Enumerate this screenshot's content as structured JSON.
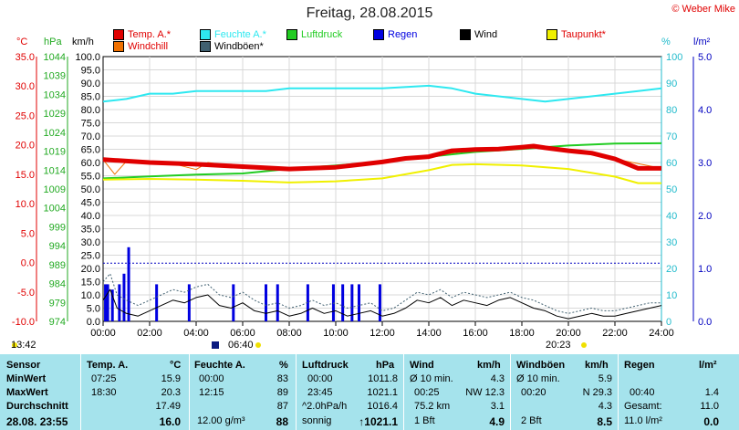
{
  "title": "Freitag, 28.08.2015",
  "credit": "© Weber Mike",
  "axis_units": {
    "temp": "°C",
    "pressure": "hPa",
    "speed": "km/h",
    "percent": "%",
    "rain": "l/m²"
  },
  "legend": [
    {
      "label": "Temp. A.*",
      "color": "#e00000"
    },
    {
      "label": "Feuchte A.*",
      "color": "#2ee8f0"
    },
    {
      "label": "Luftdruck",
      "color": "#22cc22"
    },
    {
      "label": "Regen",
      "color": "#0000e0"
    },
    {
      "label": "Wind",
      "color": "#000000"
    },
    {
      "label": "Taupunkt*",
      "color": "#f0f000"
    },
    {
      "label": "Windchill",
      "color": "#f07000"
    },
    {
      "label": "Windböen*",
      "color": "#406070"
    }
  ],
  "axes": {
    "temp_ticks": [
      "35.0",
      "30.0",
      "25.0",
      "20.0",
      "15.0",
      "10.0",
      "5.0",
      "0.0",
      "-5.0",
      "-10.0"
    ],
    "pressure_ticks": [
      "1044",
      "1039",
      "1034",
      "1029",
      "1024",
      "1019",
      "1014",
      "1009",
      "1004",
      "999",
      "994",
      "989",
      "984",
      "979",
      "974"
    ],
    "speed_ticks": [
      "100.0",
      "95.0",
      "90.0",
      "85.0",
      "80.0",
      "75.0",
      "70.0",
      "65.0",
      "60.0",
      "55.0",
      "50.0",
      "45.0",
      "40.0",
      "35.0",
      "30.0",
      "25.0",
      "20.0",
      "15.0",
      "10.0",
      "5.0",
      "0.0"
    ],
    "percent_ticks": [
      "100",
      "90",
      "80",
      "70",
      "60",
      "50",
      "40",
      "30",
      "20",
      "10",
      "0"
    ],
    "rain_ticks": [
      "5.0",
      "4.0",
      "3.0",
      "2.0",
      "1.0",
      "0.0"
    ],
    "x_ticks": [
      "00:00",
      "02:00",
      "04:00",
      "06:00",
      "08:00",
      "10:00",
      "12:00",
      "14:00",
      "16:00",
      "18:00",
      "20:00",
      "22:00",
      "24:00"
    ]
  },
  "sun_events": {
    "sunrise": "06:40",
    "sunset": "20:23",
    "left_time": "13:42"
  },
  "chart_data": {
    "type": "line",
    "x_unit": "hour",
    "temp_range": [
      -10,
      35
    ],
    "pressure_range": [
      974,
      1044
    ],
    "speed_range": [
      0,
      100
    ],
    "percent_range": [
      0,
      100
    ],
    "rain_range": [
      0,
      5
    ],
    "series": [
      {
        "name": "Temp. A.*",
        "axis": "temp",
        "x": [
          0,
          2,
          4,
          6,
          8,
          10,
          12,
          13,
          14,
          15,
          16,
          17,
          18,
          18.5,
          19,
          20,
          21,
          22,
          23,
          24
        ],
        "values": [
          17.5,
          17.0,
          16.7,
          16.3,
          15.9,
          16.2,
          17.1,
          17.7,
          18.0,
          19.0,
          19.2,
          19.3,
          19.6,
          19.8,
          19.5,
          19.0,
          18.6,
          17.6,
          16.0,
          16.0
        ]
      },
      {
        "name": "Feuchte A.*",
        "axis": "percent",
        "x": [
          0,
          1,
          2,
          3,
          4,
          6,
          7,
          8,
          10,
          12,
          14,
          15,
          16,
          18,
          19,
          20,
          22,
          23,
          24
        ],
        "values": [
          83,
          84,
          86,
          86,
          87,
          87,
          87,
          88,
          88,
          88,
          89,
          88,
          86,
          84,
          83,
          84,
          86,
          87,
          88
        ]
      },
      {
        "name": "Luftdruck",
        "axis": "pressure",
        "x": [
          0,
          2,
          4,
          6,
          8,
          10,
          12,
          14,
          16,
          18,
          20,
          22,
          24
        ],
        "values": [
          1011.8,
          1012.3,
          1012.8,
          1013.1,
          1014.3,
          1015.2,
          1016.2,
          1017.5,
          1018.8,
          1019.6,
          1020.5,
          1021.0,
          1021.1
        ]
      },
      {
        "name": "Taupunkt*",
        "axis": "temp",
        "x": [
          0,
          2,
          4,
          6,
          8,
          10,
          12,
          14,
          15,
          16,
          18,
          20,
          22,
          23,
          24
        ],
        "values": [
          14.1,
          14.2,
          14.1,
          13.9,
          13.6,
          13.8,
          14.3,
          15.7,
          16.6,
          16.7,
          16.5,
          15.9,
          14.6,
          13.5,
          13.5
        ]
      },
      {
        "name": "Windchill",
        "axis": "temp",
        "x": [
          0,
          0.5,
          1,
          2,
          3,
          4,
          4.5,
          5,
          6,
          8,
          10,
          12,
          14,
          16,
          18,
          20,
          22,
          24
        ],
        "values": [
          17.5,
          15.0,
          17.2,
          17.0,
          16.8,
          15.8,
          17.0,
          16.7,
          16.3,
          15.9,
          16.2,
          17.1,
          18.0,
          19.2,
          19.6,
          19.0,
          17.6,
          16.0
        ]
      },
      {
        "name": "Wind",
        "axis": "speed",
        "x": [
          0,
          0.3,
          0.6,
          1,
          1.5,
          2,
          2.5,
          3,
          3.5,
          4,
          4.5,
          5,
          5.5,
          6,
          6.5,
          7,
          7.5,
          8,
          8.5,
          9,
          9.5,
          10,
          10.5,
          11,
          11.5,
          12,
          12.5,
          13,
          13.5,
          14,
          14.5,
          15,
          15.5,
          16,
          16.5,
          17,
          17.5,
          18,
          18.5,
          19,
          19.5,
          20,
          20.5,
          21,
          21.5,
          22,
          22.5,
          23,
          23.5,
          24
        ],
        "values": [
          8,
          12,
          5,
          3,
          2,
          4,
          6,
          8,
          7,
          9,
          10,
          6,
          5,
          7,
          4,
          3,
          4,
          2,
          3,
          5,
          3,
          4,
          2,
          3,
          4,
          2,
          3,
          5,
          8,
          7,
          9,
          6,
          8,
          7,
          6,
          8,
          9,
          7,
          5,
          4,
          2,
          1,
          2,
          3,
          2,
          2,
          3,
          4,
          5,
          6
        ]
      },
      {
        "name": "Windböen*",
        "axis": "speed",
        "x": [
          0,
          0.3,
          0.6,
          1,
          1.5,
          2,
          2.5,
          3,
          3.5,
          4,
          4.5,
          5,
          5.5,
          6,
          6.5,
          7,
          7.5,
          8,
          8.5,
          9,
          9.5,
          10,
          10.5,
          11,
          11.5,
          12,
          12.5,
          13,
          13.5,
          14,
          14.5,
          15,
          15.5,
          16,
          16.5,
          17,
          17.5,
          18,
          18.5,
          19,
          19.5,
          20,
          20.5,
          21,
          21.5,
          22,
          22.5,
          23,
          23.5,
          24
        ],
        "values": [
          15,
          18,
          10,
          8,
          6,
          8,
          10,
          12,
          11,
          13,
          14,
          10,
          9,
          11,
          8,
          6,
          7,
          5,
          6,
          8,
          6,
          7,
          5,
          6,
          7,
          4,
          5,
          8,
          11,
          10,
          12,
          9,
          11,
          10,
          9,
          10,
          11,
          9,
          8,
          6,
          4,
          3,
          4,
          5,
          4,
          4,
          5,
          6,
          7,
          7
        ]
      },
      {
        "name": "Regen",
        "axis": "rain",
        "type": "bar",
        "x": [
          0.1,
          0.2,
          0.4,
          0.7,
          0.9,
          1.1,
          2.3,
          3.7,
          5.6,
          7.0,
          7.5,
          8.8,
          9.9,
          10.3,
          10.7,
          11.0,
          11.9
        ],
        "values": [
          0.7,
          0.7,
          0.6,
          0.7,
          0.9,
          1.4,
          0.7,
          0.7,
          0.7,
          0.7,
          0.7,
          0.7,
          0.7,
          0.7,
          0.7,
          0.7,
          0.7
        ]
      }
    ],
    "rain_reference_line": 1.1,
    "grid": true
  },
  "stats": {
    "headers": {
      "sensor": "Sensor",
      "temp": "Temp. A.",
      "temp_unit": "°C",
      "hum": "Feuchte A.",
      "hum_unit": "%",
      "press": "Luftdruck",
      "press_unit": "hPa",
      "wind": "Wind",
      "wind_unit": "km/h",
      "gust": "Windböen",
      "gust_unit": "km/h",
      "rain": "Regen",
      "rain_unit": "l/m²"
    },
    "rows": {
      "min": {
        "label": "MinWert",
        "temp_time": "07:25",
        "temp_val": "15.9",
        "hum_time": "00:00",
        "hum_val": "83",
        "press_time": "00:00",
        "press_val": "1011.8",
        "wind_time": "Ø 10 min.",
        "wind_val": "4.3",
        "gust_time": "Ø 10 min.",
        "gust_val": "5.9"
      },
      "max": {
        "label": "MaxWert",
        "temp_time": "18:30",
        "temp_val": "20.3",
        "hum_time": "12:15",
        "hum_val": "89",
        "press_time": "23:45",
        "press_val": "1021.1",
        "wind_time": "00:25",
        "wind_val": "NW 12.3",
        "gust_time": "00:20",
        "gust_val": "N 29.3",
        "rain_time": "00:40",
        "rain_val": "1.4"
      },
      "avg": {
        "label": "Durchschnitt",
        "temp_val": "17.49",
        "hum_val": "87",
        "press_time": "^2.0hPa/h",
        "press_val": "1016.4",
        "wind_time": "75.2 km",
        "wind_val": "3.1",
        "gust_val": "4.3",
        "rain_time": "Gesamt:",
        "rain_val": "11.0"
      },
      "current": {
        "label": "28.08. 23:55",
        "temp_val": "16.0",
        "hum_time": "12.00 g/m³",
        "hum_val": "88",
        "press_time": "sonnig",
        "press_val": "↑1021.1",
        "wind_time": "1 Bft",
        "wind_val": "4.9",
        "gust_time": "2 Bft",
        "gust_val": "8.5",
        "rain_time": "11.0 l/m²",
        "rain_val": "0.0"
      }
    }
  }
}
